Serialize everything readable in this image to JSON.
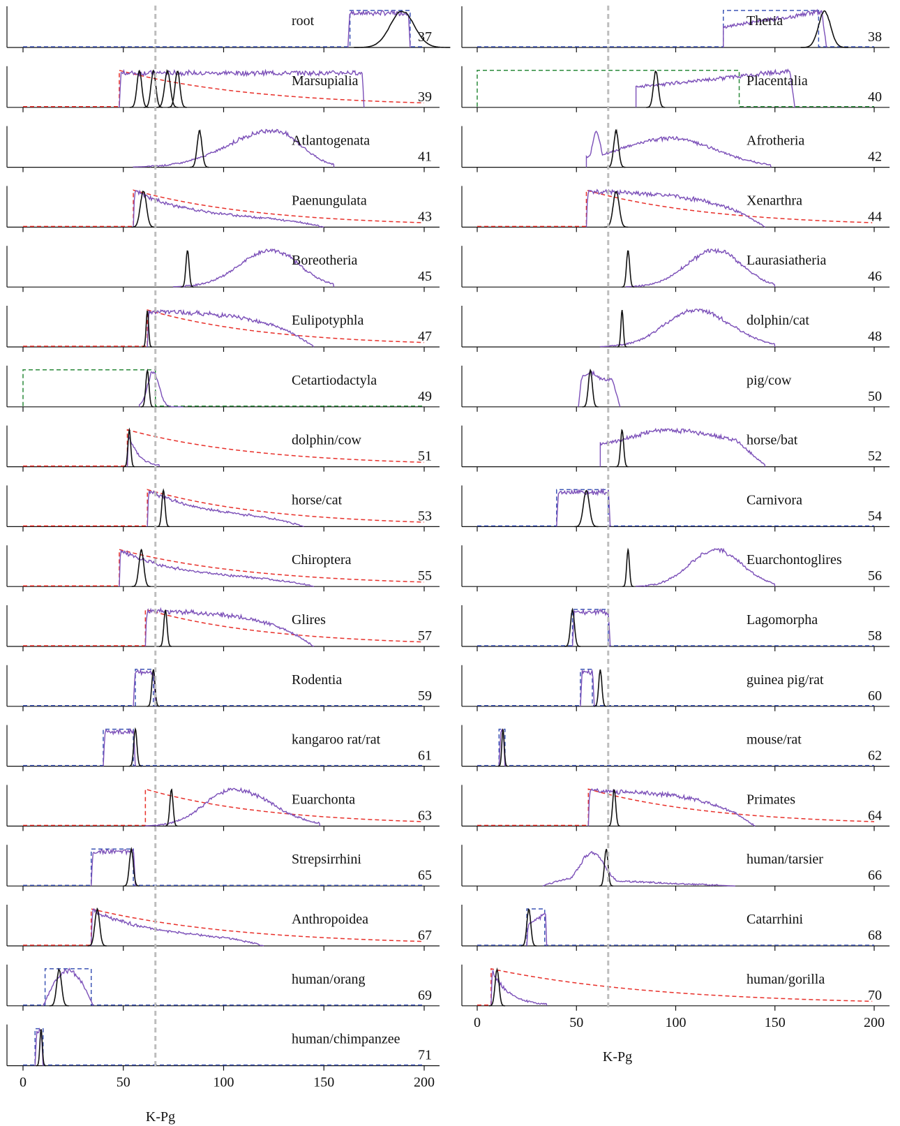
{
  "figure": {
    "xaxis_label": "K-Pg",
    "x_ticks": [
      0,
      50,
      100,
      150,
      200
    ],
    "kpg_line_x": 66,
    "columns": [
      {
        "panels": [
          37,
          39,
          41,
          43,
          45,
          47,
          49,
          51,
          53,
          55,
          57,
          59,
          61,
          63,
          65,
          67,
          69,
          71
        ]
      },
      {
        "panels": [
          38,
          40,
          42,
          44,
          46,
          48,
          50,
          52,
          54,
          56,
          58,
          60,
          62,
          64,
          66,
          68,
          70
        ]
      }
    ]
  },
  "colors": {
    "posterior": "#7b4fb8",
    "fossil_calibration": "#111111",
    "prior_red": "#e8302a",
    "prior_blue": "#3d55b5",
    "prior_green": "#2a8a3a",
    "kpg_line": "#bdbdbd"
  },
  "chart_data": {
    "type": "line",
    "xlabel": "K-Pg",
    "xlim": [
      0,
      200
    ],
    "panels": [
      {
        "num": 37,
        "label": "root",
        "prior": {
          "type": "blue",
          "start": 163,
          "end": 193
        },
        "posterior": {
          "start": 162,
          "end": 193,
          "shape": "flat"
        },
        "fossil": [
          {
            "mean": 189,
            "sd": 6
          }
        ]
      },
      {
        "num": 38,
        "label": "Theria",
        "prior": {
          "type": "blue",
          "start": 124,
          "end": 172
        },
        "posterior": {
          "start": 124,
          "end": 176,
          "shape": "rise"
        },
        "fossil": [
          {
            "mean": 175,
            "sd": 3
          }
        ]
      },
      {
        "num": 39,
        "label": "Marsupialia",
        "prior": {
          "type": "red",
          "start": 48
        },
        "posterior": {
          "start": 48,
          "end": 170,
          "shape": "flat"
        },
        "fossil": [
          {
            "mean": 58,
            "sd": 1.2
          },
          {
            "mean": 65,
            "sd": 1.2
          },
          {
            "mean": 72,
            "sd": 1.4
          },
          {
            "mean": 77,
            "sd": 1.2
          }
        ]
      },
      {
        "num": 40,
        "label": "Placentalia",
        "prior": {
          "type": "green",
          "start": 0,
          "end": 132
        },
        "posterior": {
          "start": 80,
          "end": 160,
          "shape": "rise"
        },
        "fossil": [
          {
            "mean": 90,
            "sd": 1.2
          }
        ]
      },
      {
        "num": 41,
        "label": "Atlantogenata",
        "posterior": {
          "start": 55,
          "end": 155,
          "mode": 125,
          "shape": "bell"
        },
        "fossil": [
          {
            "mean": 88,
            "sd": 1.2
          }
        ]
      },
      {
        "num": 42,
        "label": "Afrotheria",
        "posterior": {
          "start": 55,
          "end": 148,
          "shape": "wide"
        },
        "fossil": [
          {
            "mean": 70,
            "sd": 1.2
          }
        ]
      },
      {
        "num": 43,
        "label": "Paenungulata",
        "prior": {
          "type": "red",
          "start": 55
        },
        "posterior": {
          "start": 55,
          "end": 150,
          "shape": "decay"
        },
        "fossil": [
          {
            "mean": 60,
            "sd": 1.5
          }
        ]
      },
      {
        "num": 44,
        "label": "Xenarthra",
        "prior": {
          "type": "red",
          "start": 55
        },
        "posterior": {
          "start": 55,
          "end": 145,
          "shape": "slow"
        },
        "fossil": [
          {
            "mean": 70,
            "sd": 1.5
          }
        ]
      },
      {
        "num": 45,
        "label": "Boreotheria",
        "posterior": {
          "start": 75,
          "end": 155,
          "mode": 124,
          "shape": "bell"
        },
        "fossil": [
          {
            "mean": 82,
            "sd": 0.8
          }
        ]
      },
      {
        "num": 46,
        "label": "Laurasiatheria",
        "posterior": {
          "start": 75,
          "end": 150,
          "mode": 120,
          "shape": "bell"
        },
        "fossil": [
          {
            "mean": 76,
            "sd": 0.8
          }
        ]
      },
      {
        "num": 47,
        "label": "Eulipotyphla",
        "prior": {
          "type": "red",
          "start": 62
        },
        "posterior": {
          "start": 62,
          "end": 145,
          "shape": "slow"
        },
        "fossil": [
          {
            "mean": 62,
            "sd": 0.6
          }
        ]
      },
      {
        "num": 48,
        "label": "dolphin/cat",
        "posterior": {
          "start": 62,
          "end": 150,
          "mode": 110,
          "shape": "bell"
        },
        "fossil": [
          {
            "mean": 73,
            "sd": 0.6
          }
        ]
      },
      {
        "num": 49,
        "label": "Cetartiodactyla",
        "prior": {
          "type": "green",
          "start": 0,
          "end": 66
        },
        "posterior": {
          "start": 58,
          "end": 80,
          "shape": "peak"
        },
        "fossil": [
          {
            "mean": 62,
            "sd": 0.8
          }
        ]
      },
      {
        "num": 50,
        "label": "pig/cow",
        "posterior": {
          "start": 51,
          "end": 72,
          "shape": "peak2"
        },
        "fossil": [
          {
            "mean": 57,
            "sd": 1
          }
        ]
      },
      {
        "num": 51,
        "label": "dolphin/cow",
        "prior": {
          "type": "red",
          "start": 52
        },
        "posterior": {
          "start": 52,
          "end": 68,
          "shape": "decay_fast"
        },
        "fossil": [
          {
            "mean": 53,
            "sd": 0.7
          }
        ]
      },
      {
        "num": 52,
        "label": "horse/bat",
        "posterior": {
          "start": 62,
          "end": 145,
          "mode": 95,
          "shape": "bell2"
        },
        "fossil": [
          {
            "mean": 73,
            "sd": 0.8
          }
        ]
      },
      {
        "num": 53,
        "label": "horse/cat",
        "prior": {
          "type": "red",
          "start": 62
        },
        "posterior": {
          "start": 62,
          "end": 140,
          "shape": "decay"
        },
        "fossil": [
          {
            "mean": 70,
            "sd": 0.8
          }
        ]
      },
      {
        "num": 54,
        "label": "Carnivora",
        "prior": {
          "type": "blue",
          "start": 40,
          "end": 66
        },
        "posterior": {
          "start": 40,
          "end": 67,
          "shape": "flat"
        },
        "fossil": [
          {
            "mean": 55,
            "sd": 1.5
          }
        ]
      },
      {
        "num": 55,
        "label": "Chiroptera",
        "prior": {
          "type": "red",
          "start": 48
        },
        "posterior": {
          "start": 48,
          "end": 145,
          "shape": "decay"
        },
        "fossil": [
          {
            "mean": 59,
            "sd": 1.2
          }
        ]
      },
      {
        "num": 56,
        "label": "Euarchontoglires",
        "posterior": {
          "start": 80,
          "end": 150,
          "mode": 120,
          "shape": "bell"
        },
        "fossil": [
          {
            "mean": 76,
            "sd": 0.7
          }
        ]
      },
      {
        "num": 57,
        "label": "Glires",
        "prior": {
          "type": "red",
          "start": 61
        },
        "posterior": {
          "start": 61,
          "end": 145,
          "shape": "slow"
        },
        "fossil": [
          {
            "mean": 71,
            "sd": 0.8
          }
        ]
      },
      {
        "num": 58,
        "label": "Lagomorpha",
        "prior": {
          "type": "blue",
          "start": 48,
          "end": 66
        },
        "posterior": {
          "start": 48,
          "end": 67,
          "shape": "flat"
        },
        "fossil": [
          {
            "mean": 48,
            "sd": 1
          }
        ]
      },
      {
        "num": 59,
        "label": "Rodentia",
        "prior": {
          "type": "blue",
          "start": 56,
          "end": 65
        },
        "posterior": {
          "start": 55,
          "end": 66,
          "shape": "flat"
        },
        "fossil": [
          {
            "mean": 65,
            "sd": 0.8
          }
        ]
      },
      {
        "num": 60,
        "label": "guinea pig/rat",
        "prior": {
          "type": "blue",
          "start": 52,
          "end": 58
        },
        "posterior": {
          "start": 52,
          "end": 59,
          "shape": "flat"
        },
        "fossil": [
          {
            "mean": 62,
            "sd": 0.8
          }
        ]
      },
      {
        "num": 61,
        "label": "kangaroo rat/rat",
        "prior": {
          "type": "blue",
          "start": 40,
          "end": 55
        },
        "posterior": {
          "start": 40,
          "end": 56,
          "shape": "flat"
        },
        "fossil": [
          {
            "mean": 56,
            "sd": 0.8
          }
        ]
      },
      {
        "num": 62,
        "label": "mouse/rat",
        "prior": {
          "type": "blue",
          "start": 11,
          "end": 14
        },
        "posterior": {
          "start": 11,
          "end": 14,
          "shape": "flat"
        },
        "fossil": [
          {
            "mean": 13,
            "sd": 0.6
          }
        ]
      },
      {
        "num": 63,
        "label": "Euarchonta",
        "prior": {
          "type": "red",
          "start": 61
        },
        "posterior": {
          "start": 61,
          "end": 148,
          "mode": 105,
          "shape": "bell"
        },
        "fossil": [
          {
            "mean": 74,
            "sd": 0.8
          }
        ]
      },
      {
        "num": 64,
        "label": "Primates",
        "prior": {
          "type": "red",
          "start": 56
        },
        "posterior": {
          "start": 56,
          "end": 140,
          "shape": "slow"
        },
        "fossil": [
          {
            "mean": 69,
            "sd": 0.8
          }
        ]
      },
      {
        "num": 65,
        "label": "Strepsirrhini",
        "prior": {
          "type": "blue",
          "start": 34,
          "end": 55
        },
        "posterior": {
          "start": 34,
          "end": 56,
          "shape": "flat"
        },
        "fossil": [
          {
            "mean": 54,
            "sd": 1
          }
        ]
      },
      {
        "num": 66,
        "label": "human/tarsier",
        "posterior": {
          "start": 33,
          "end": 130,
          "shape": "tarsier"
        },
        "fossil": [
          {
            "mean": 65,
            "sd": 0.9
          }
        ]
      },
      {
        "num": 67,
        "label": "Anthropoidea",
        "prior": {
          "type": "red",
          "start": 34
        },
        "posterior": {
          "start": 34,
          "end": 120,
          "shape": "decay"
        },
        "fossil": [
          {
            "mean": 37,
            "sd": 1.2
          }
        ]
      },
      {
        "num": 68,
        "label": "Catarrhini",
        "prior": {
          "type": "blue",
          "start": 25,
          "end": 34
        },
        "posterior": {
          "start": 25,
          "end": 35,
          "shape": "rise_short"
        },
        "fossil": [
          {
            "mean": 26,
            "sd": 1
          }
        ]
      },
      {
        "num": 69,
        "label": "human/orang",
        "prior": {
          "type": "blue",
          "start": 11,
          "end": 34
        },
        "posterior": {
          "start": 10,
          "end": 35,
          "shape": "hump"
        },
        "fossil": [
          {
            "mean": 18,
            "sd": 1.2
          }
        ]
      },
      {
        "num": 70,
        "label": "human/gorilla",
        "prior": {
          "type": "red",
          "start": 7
        },
        "posterior": {
          "start": 7,
          "end": 35,
          "shape": "decay_fast"
        },
        "fossil": [
          {
            "mean": 10,
            "sd": 1
          }
        ]
      },
      {
        "num": 71,
        "label": "human/chimpanzee",
        "prior": {
          "type": "blue",
          "start": 6,
          "end": 10
        },
        "posterior": {
          "start": 6,
          "end": 10,
          "shape": "flat"
        },
        "fossil": [
          {
            "mean": 9,
            "sd": 0.6
          }
        ]
      }
    ]
  }
}
